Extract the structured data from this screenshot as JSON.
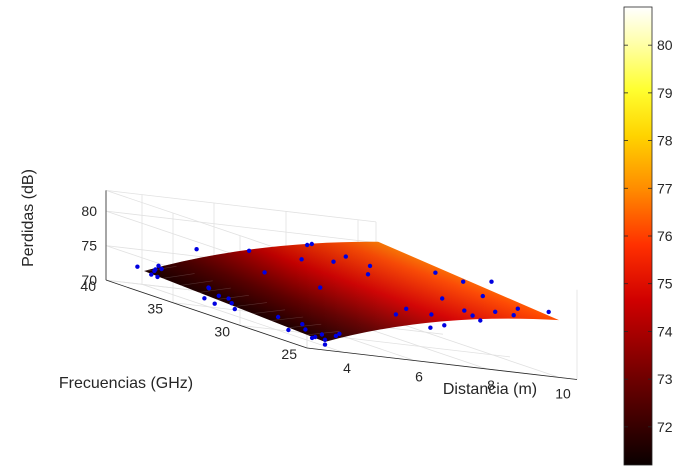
{
  "chart_data": {
    "type": "surface",
    "title": "",
    "xlabel": "Distancia (m)",
    "ylabel": "Frecuencias (GHz)",
    "zlabel": "Perdidas (dB)",
    "x_ticks": [
      "4",
      "6",
      "8",
      "10"
    ],
    "y_ticks": [
      "25",
      "30",
      "35",
      "40"
    ],
    "z_ticks": [
      "70",
      "75",
      "80"
    ],
    "xlim": [
      3,
      10.5
    ],
    "ylim": [
      25,
      40
    ],
    "zlim": [
      70,
      83
    ],
    "colormap": "hot",
    "colorbar_ticks": [
      "72",
      "73",
      "74",
      "75",
      "76",
      "77",
      "78",
      "79",
      "80"
    ],
    "colorbar_range": [
      71.2,
      80.8
    ],
    "surface_corners": [
      {
        "x": 3.5,
        "y": 25,
        "z": 71.2
      },
      {
        "x": 10,
        "y": 25,
        "z": 78.3
      },
      {
        "x": 10,
        "y": 38.5,
        "z": 80.8
      },
      {
        "x": 3.5,
        "y": 38.5,
        "z": 72.6
      }
    ],
    "measured_points": [
      {
        "x": 3.5,
        "y": 25,
        "z": 71.5
      },
      {
        "x": 3.5,
        "y": 25,
        "z": 70.8
      },
      {
        "x": 3.6,
        "y": 25.5,
        "z": 72.0
      },
      {
        "x": 3.6,
        "y": 26,
        "z": 71.3
      },
      {
        "x": 3.7,
        "y": 26.5,
        "z": 70.9
      },
      {
        "x": 3.7,
        "y": 27,
        "z": 71.8
      },
      {
        "x": 3.8,
        "y": 27.5,
        "z": 72.3
      },
      {
        "x": 3.6,
        "y": 28,
        "z": 71.0
      },
      {
        "x": 3.5,
        "y": 28.5,
        "z": 72.5
      },
      {
        "x": 3.9,
        "y": 25,
        "z": 72.6
      },
      {
        "x": 4.1,
        "y": 25.8,
        "z": 71.9
      },
      {
        "x": 3.6,
        "y": 32,
        "z": 71.4
      },
      {
        "x": 3.7,
        "y": 32.5,
        "z": 72.0
      },
      {
        "x": 3.8,
        "y": 33,
        "z": 72.4
      },
      {
        "x": 3.6,
        "y": 33.5,
        "z": 71.2
      },
      {
        "x": 3.9,
        "y": 34,
        "z": 72.2
      },
      {
        "x": 3.5,
        "y": 34,
        "z": 71.6
      },
      {
        "x": 3.8,
        "y": 34.5,
        "z": 73.0
      },
      {
        "x": 4.0,
        "y": 35,
        "z": 72.7
      },
      {
        "x": 3.5,
        "y": 37.5,
        "z": 72.4
      },
      {
        "x": 3.6,
        "y": 38,
        "z": 73.0
      },
      {
        "x": 3.7,
        "y": 38.5,
        "z": 72.2
      },
      {
        "x": 3.8,
        "y": 38,
        "z": 73.4
      },
      {
        "x": 3.5,
        "y": 39,
        "z": 72.9
      },
      {
        "x": 3.9,
        "y": 38.5,
        "z": 73.6
      },
      {
        "x": 4.0,
        "y": 39,
        "z": 72.8
      },
      {
        "x": 4.8,
        "y": 33,
        "z": 76.8
      },
      {
        "x": 4.4,
        "y": 37,
        "z": 77.3
      },
      {
        "x": 5.6,
        "y": 31,
        "z": 76.4
      },
      {
        "x": 6.5,
        "y": 27,
        "z": 76.5
      },
      {
        "x": 6.4,
        "y": 27.5,
        "z": 75.3
      },
      {
        "x": 6.8,
        "y": 26,
        "z": 74.6
      },
      {
        "x": 7.0,
        "y": 25.5,
        "z": 75.4
      },
      {
        "x": 7.2,
        "y": 27,
        "z": 76.1
      },
      {
        "x": 5.3,
        "y": 35.5,
        "z": 78.6
      },
      {
        "x": 6.2,
        "y": 34,
        "z": 78.9
      },
      {
        "x": 6.9,
        "y": 33.5,
        "z": 79.3
      },
      {
        "x": 7.3,
        "y": 32,
        "z": 78.7
      },
      {
        "x": 7.1,
        "y": 36,
        "z": 80.2
      },
      {
        "x": 7.6,
        "y": 37,
        "z": 80.0
      },
      {
        "x": 7.8,
        "y": 35,
        "z": 79.6
      },
      {
        "x": 8.1,
        "y": 34,
        "z": 79.1
      },
      {
        "x": 7.6,
        "y": 25,
        "z": 77.5
      },
      {
        "x": 8.0,
        "y": 25.5,
        "z": 76.7
      },
      {
        "x": 7.5,
        "y": 27,
        "z": 78.6
      },
      {
        "x": 8.3,
        "y": 27.5,
        "z": 77.0
      },
      {
        "x": 8.6,
        "y": 26,
        "z": 78.0
      },
      {
        "x": 9.0,
        "y": 28,
        "z": 79.2
      },
      {
        "x": 9.3,
        "y": 26.5,
        "z": 77.6
      },
      {
        "x": 9.6,
        "y": 27,
        "z": 78.4
      },
      {
        "x": 8.8,
        "y": 31,
        "z": 80.5
      },
      {
        "x": 9.2,
        "y": 30,
        "z": 80.1
      },
      {
        "x": 9.8,
        "y": 29.5,
        "z": 80.8
      },
      {
        "x": 9.9,
        "y": 25.5,
        "z": 79.1
      }
    ],
    "grid": true,
    "legend": "none",
    "colors": {
      "point": "#0000e0",
      "axis": "#262626",
      "grid": "#e1e1e1"
    }
  }
}
